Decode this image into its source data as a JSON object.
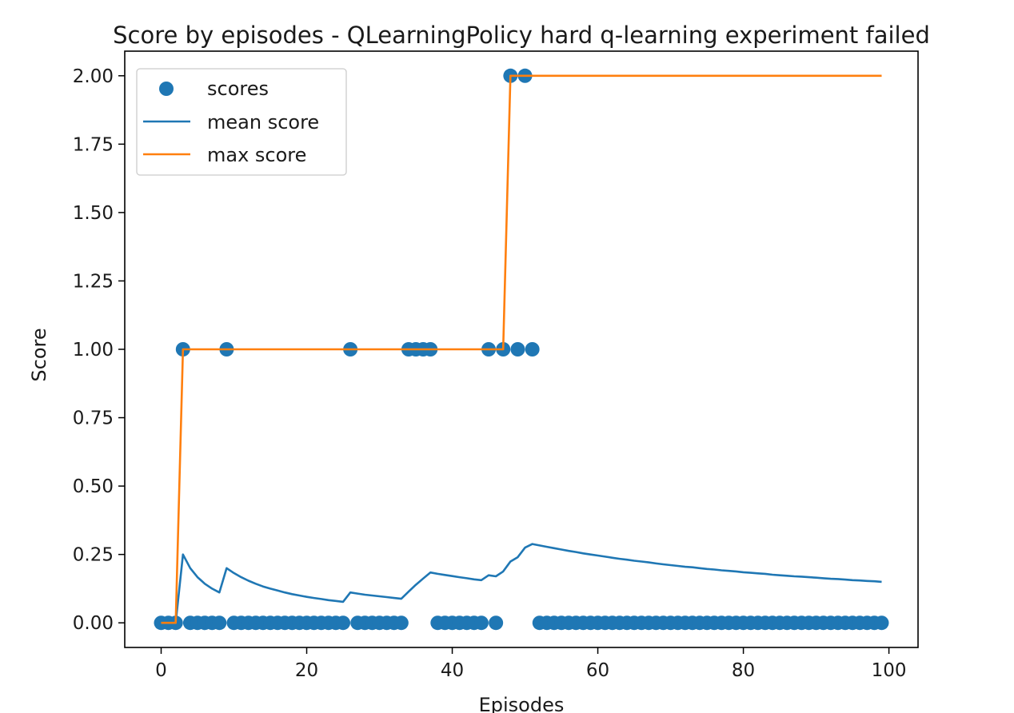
{
  "chart_data": {
    "type": "scatter+line",
    "title": "Score by episodes - QLearningPolicy hard q-learning experiment failed",
    "xlabel": "Episodes",
    "ylabel": "Score",
    "xlim": [
      -5,
      104
    ],
    "ylim": [
      -0.09,
      2.09
    ],
    "x_ticks": [
      0,
      20,
      40,
      60,
      80,
      100
    ],
    "y_ticks": [
      0.0,
      0.25,
      0.5,
      0.75,
      1.0,
      1.25,
      1.5,
      1.75,
      2.0
    ],
    "x_tick_labels": [
      "0",
      "20",
      "40",
      "60",
      "80",
      "100"
    ],
    "y_tick_labels": [
      "0.00",
      "0.25",
      "0.50",
      "0.75",
      "1.00",
      "1.25",
      "1.50",
      "1.75",
      "2.00"
    ],
    "grid": false,
    "legend_position": "upper-left",
    "series": [
      {
        "name": "scores",
        "kind": "scatter",
        "color": "#1f77b4",
        "x": [
          0,
          1,
          2,
          3,
          4,
          5,
          6,
          7,
          8,
          9,
          10,
          11,
          12,
          13,
          14,
          15,
          16,
          17,
          18,
          19,
          20,
          21,
          22,
          23,
          24,
          25,
          26,
          27,
          28,
          29,
          30,
          31,
          32,
          33,
          34,
          35,
          36,
          37,
          38,
          39,
          40,
          41,
          42,
          43,
          44,
          45,
          46,
          47,
          48,
          49,
          50,
          51,
          52,
          53,
          54,
          55,
          56,
          57,
          58,
          59,
          60,
          61,
          62,
          63,
          64,
          65,
          66,
          67,
          68,
          69,
          70,
          71,
          72,
          73,
          74,
          75,
          76,
          77,
          78,
          79,
          80,
          81,
          82,
          83,
          84,
          85,
          86,
          87,
          88,
          89,
          90,
          91,
          92,
          93,
          94,
          95,
          96,
          97,
          98,
          99
        ],
        "values": [
          0,
          0,
          0,
          1,
          0,
          0,
          0,
          0,
          0,
          1,
          0,
          0,
          0,
          0,
          0,
          0,
          0,
          0,
          0,
          0,
          0,
          0,
          0,
          0,
          0,
          0,
          1,
          0,
          0,
          0,
          0,
          0,
          0,
          0,
          1,
          1,
          1,
          1,
          0,
          0,
          0,
          0,
          0,
          0,
          0,
          1,
          0,
          1,
          2,
          1,
          2,
          1,
          0,
          0,
          0,
          0,
          0,
          0,
          0,
          0,
          0,
          0,
          0,
          0,
          0,
          0,
          0,
          0,
          0,
          0,
          0,
          0,
          0,
          0,
          0,
          0,
          0,
          0,
          0,
          0,
          0,
          0,
          0,
          0,
          0,
          0,
          0,
          0,
          0,
          0,
          0,
          0,
          0,
          0,
          0,
          0,
          0,
          0,
          0,
          0
        ]
      },
      {
        "name": "mean score",
        "kind": "line",
        "color": "#1f77b4",
        "x": [
          0,
          1,
          2,
          3,
          4,
          5,
          6,
          7,
          8,
          9,
          10,
          11,
          12,
          13,
          14,
          15,
          16,
          17,
          18,
          19,
          20,
          21,
          22,
          23,
          24,
          25,
          26,
          27,
          28,
          29,
          30,
          31,
          32,
          33,
          34,
          35,
          36,
          37,
          38,
          39,
          40,
          41,
          42,
          43,
          44,
          45,
          46,
          47,
          48,
          49,
          50,
          51,
          52,
          53,
          54,
          55,
          56,
          57,
          58,
          59,
          60,
          61,
          62,
          63,
          64,
          65,
          66,
          67,
          68,
          69,
          70,
          71,
          72,
          73,
          74,
          75,
          76,
          77,
          78,
          79,
          80,
          81,
          82,
          83,
          84,
          85,
          86,
          87,
          88,
          89,
          90,
          91,
          92,
          93,
          94,
          95,
          96,
          97,
          98,
          99
        ],
        "values": [
          0,
          0,
          0,
          0.25,
          0.2,
          0.167,
          0.143,
          0.125,
          0.111,
          0.2,
          0.182,
          0.167,
          0.154,
          0.143,
          0.133,
          0.125,
          0.118,
          0.111,
          0.105,
          0.1,
          0.095,
          0.091,
          0.087,
          0.083,
          0.08,
          0.077,
          0.111,
          0.107,
          0.103,
          0.1,
          0.097,
          0.094,
          0.091,
          0.088,
          0.114,
          0.139,
          0.162,
          0.184,
          0.179,
          0.175,
          0.171,
          0.167,
          0.163,
          0.159,
          0.156,
          0.174,
          0.17,
          0.188,
          0.224,
          0.24,
          0.275,
          0.288,
          0.283,
          0.278,
          0.273,
          0.268,
          0.263,
          0.259,
          0.254,
          0.25,
          0.246,
          0.242,
          0.238,
          0.234,
          0.231,
          0.227,
          0.224,
          0.221,
          0.217,
          0.214,
          0.211,
          0.208,
          0.205,
          0.203,
          0.2,
          0.197,
          0.195,
          0.192,
          0.19,
          0.188,
          0.185,
          0.183,
          0.181,
          0.179,
          0.176,
          0.174,
          0.172,
          0.17,
          0.169,
          0.167,
          0.165,
          0.163,
          0.161,
          0.16,
          0.158,
          0.156,
          0.155,
          0.153,
          0.152,
          0.15
        ]
      },
      {
        "name": "max score",
        "kind": "line",
        "color": "#ff7f0e",
        "x": [
          0,
          1,
          2,
          3,
          4,
          5,
          6,
          7,
          8,
          9,
          10,
          11,
          12,
          13,
          14,
          15,
          16,
          17,
          18,
          19,
          20,
          21,
          22,
          23,
          24,
          25,
          26,
          27,
          28,
          29,
          30,
          31,
          32,
          33,
          34,
          35,
          36,
          37,
          38,
          39,
          40,
          41,
          42,
          43,
          44,
          45,
          46,
          47,
          48,
          49,
          50,
          51,
          52,
          53,
          54,
          55,
          56,
          57,
          58,
          59,
          60,
          61,
          62,
          63,
          64,
          65,
          66,
          67,
          68,
          69,
          70,
          71,
          72,
          73,
          74,
          75,
          76,
          77,
          78,
          79,
          80,
          81,
          82,
          83,
          84,
          85,
          86,
          87,
          88,
          89,
          90,
          91,
          92,
          93,
          94,
          95,
          96,
          97,
          98,
          99
        ],
        "values": [
          0,
          0,
          0,
          1,
          1,
          1,
          1,
          1,
          1,
          1,
          1,
          1,
          1,
          1,
          1,
          1,
          1,
          1,
          1,
          1,
          1,
          1,
          1,
          1,
          1,
          1,
          1,
          1,
          1,
          1,
          1,
          1,
          1,
          1,
          1,
          1,
          1,
          1,
          1,
          1,
          1,
          1,
          1,
          1,
          1,
          1,
          1,
          1,
          2,
          2,
          2,
          2,
          2,
          2,
          2,
          2,
          2,
          2,
          2,
          2,
          2,
          2,
          2,
          2,
          2,
          2,
          2,
          2,
          2,
          2,
          2,
          2,
          2,
          2,
          2,
          2,
          2,
          2,
          2,
          2,
          2,
          2,
          2,
          2,
          2,
          2,
          2,
          2,
          2,
          2,
          2,
          2,
          2,
          2,
          2,
          2,
          2,
          2,
          2,
          2
        ]
      }
    ]
  }
}
